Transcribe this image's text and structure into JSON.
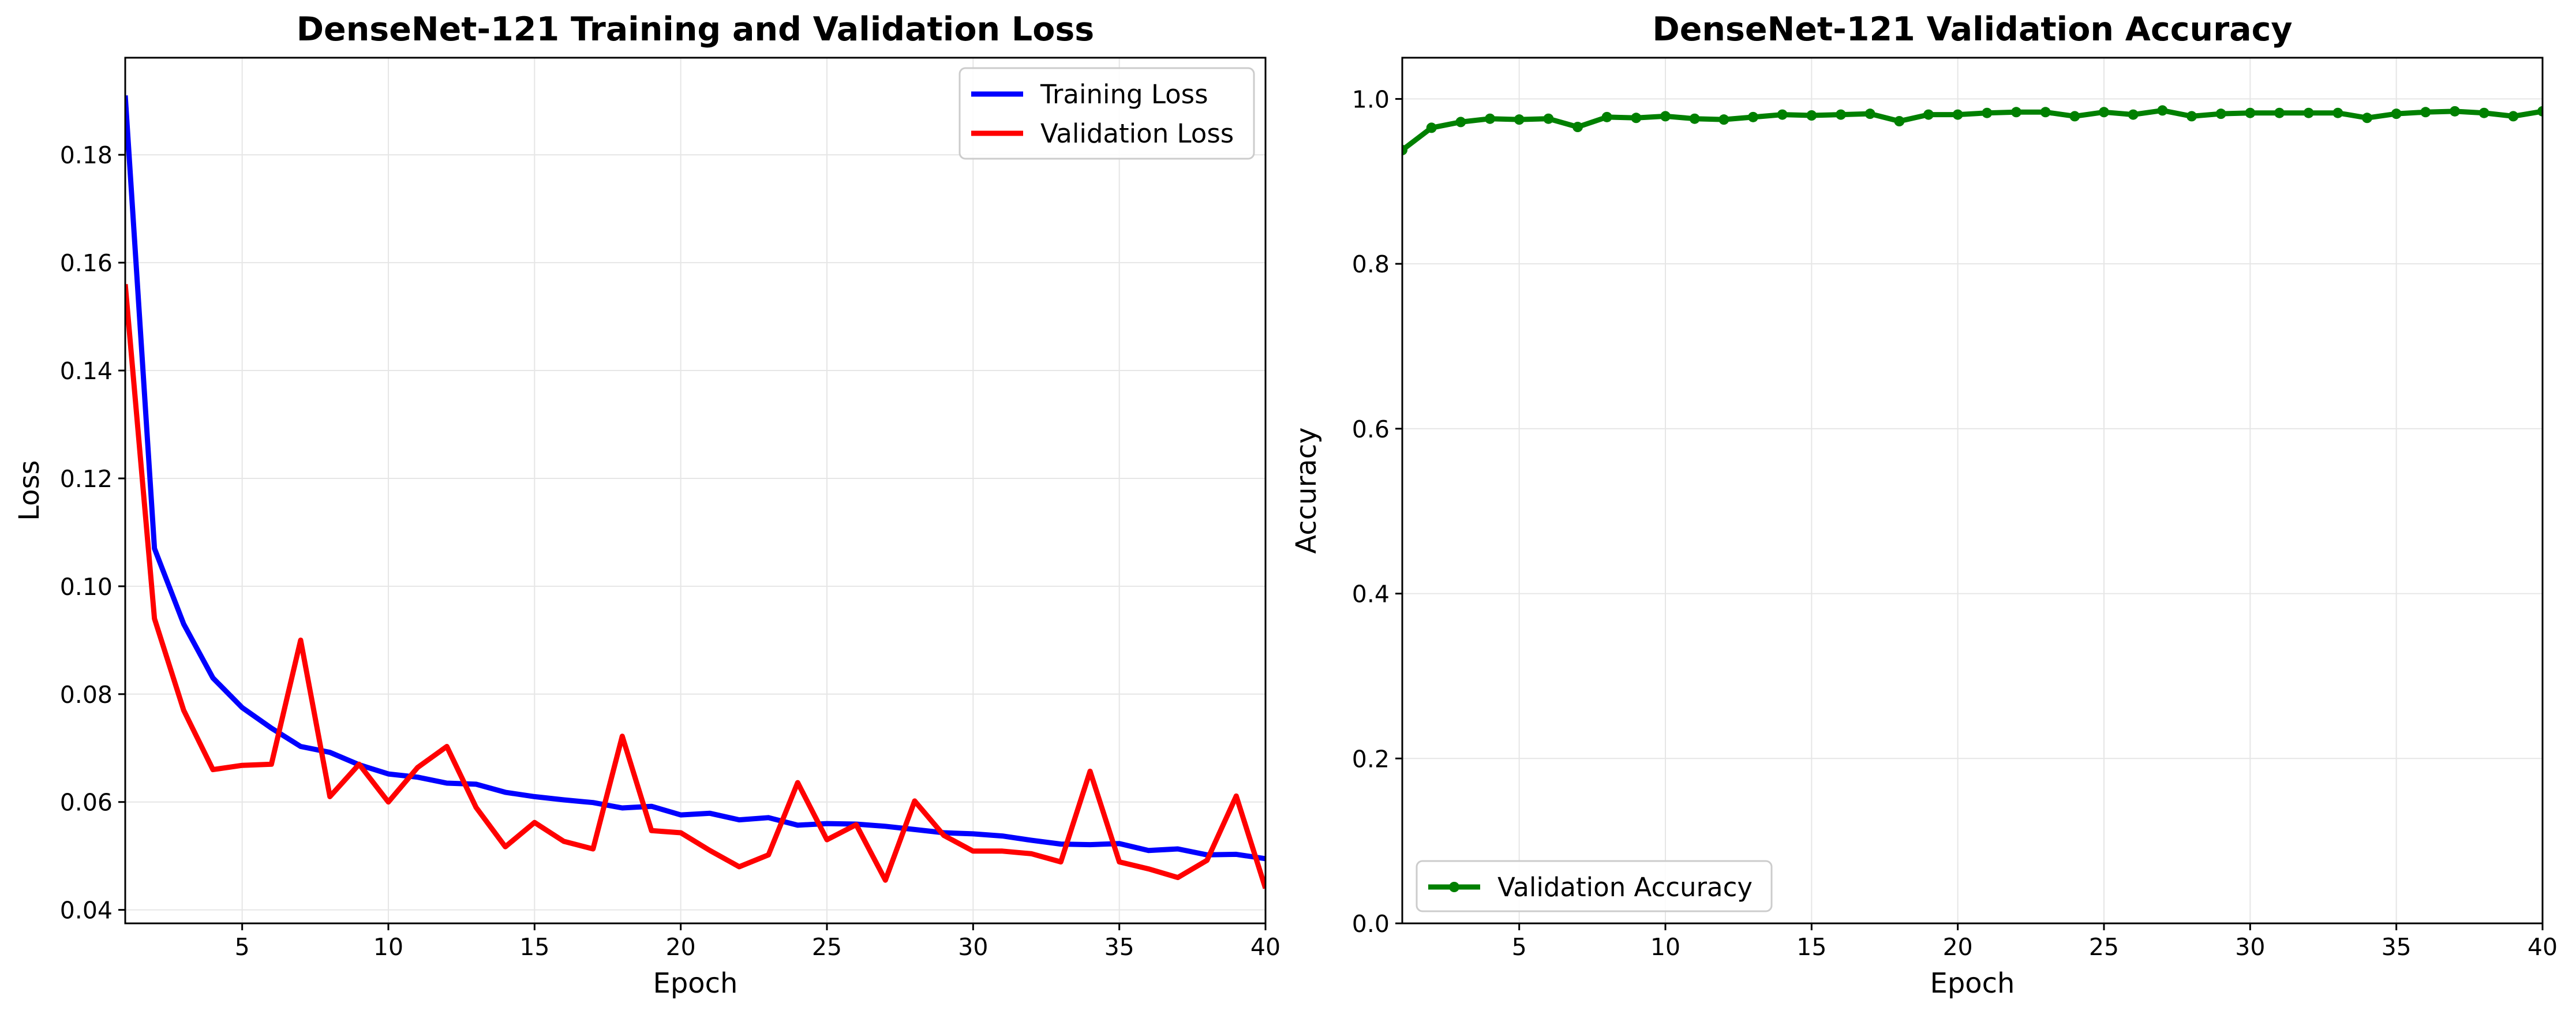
{
  "chart_data": [
    {
      "type": "line",
      "title": "DenseNet-121 Training and Validation Loss",
      "xlabel": "Epoch",
      "ylabel": "Loss",
      "xlim": [
        1,
        40
      ],
      "ylim": [
        0.0375,
        0.198
      ],
      "xticks": [
        5,
        10,
        15,
        20,
        25,
        30,
        35,
        40
      ],
      "yticks": [
        0.04,
        0.06,
        0.08,
        0.1,
        0.12,
        0.14,
        0.16,
        0.18
      ],
      "ytick_labels": [
        "0.04",
        "0.06",
        "0.08",
        "0.10",
        "0.12",
        "0.14",
        "0.16",
        "0.18"
      ],
      "grid": true,
      "legend_position": "upper right",
      "x": [
        1,
        2,
        3,
        4,
        5,
        6,
        7,
        8,
        9,
        10,
        11,
        12,
        13,
        14,
        15,
        16,
        17,
        18,
        19,
        20,
        21,
        22,
        23,
        24,
        25,
        26,
        27,
        28,
        29,
        30,
        31,
        32,
        33,
        34,
        35,
        36,
        37,
        38,
        39,
        40
      ],
      "series": [
        {
          "name": "Training Loss",
          "color": "#0000ff",
          "values": [
            0.191,
            0.107,
            0.093,
            0.083,
            0.0775,
            0.0737,
            0.0703,
            0.0692,
            0.0669,
            0.0652,
            0.0646,
            0.0635,
            0.0633,
            0.0618,
            0.061,
            0.0604,
            0.0599,
            0.0589,
            0.0592,
            0.0576,
            0.0579,
            0.0567,
            0.0571,
            0.0557,
            0.056,
            0.0559,
            0.0555,
            0.0549,
            0.0543,
            0.0541,
            0.0537,
            0.0529,
            0.0522,
            0.0521,
            0.0523,
            0.051,
            0.0513,
            0.0502,
            0.0503,
            0.0495
          ]
        },
        {
          "name": "Validation Loss",
          "color": "#ff0000",
          "values": [
            0.156,
            0.094,
            0.077,
            0.066,
            0.0668,
            0.067,
            0.09,
            0.061,
            0.067,
            0.06,
            0.0664,
            0.0703,
            0.059,
            0.0517,
            0.0562,
            0.0527,
            0.0513,
            0.0722,
            0.0547,
            0.0543,
            0.051,
            0.048,
            0.0502,
            0.0636,
            0.053,
            0.0558,
            0.0455,
            0.0602,
            0.0538,
            0.0509,
            0.0509,
            0.0504,
            0.0489,
            0.0657,
            0.0489,
            0.0476,
            0.046,
            0.0492,
            0.0611,
            0.044
          ]
        }
      ]
    },
    {
      "type": "line",
      "title": "DenseNet-121 Validation Accuracy",
      "xlabel": "Epoch",
      "ylabel": "Accuracy",
      "xlim": [
        1,
        40
      ],
      "ylim": [
        0.0,
        1.05
      ],
      "xticks": [
        5,
        10,
        15,
        20,
        25,
        30,
        35,
        40
      ],
      "yticks": [
        0.0,
        0.2,
        0.4,
        0.6,
        0.8,
        1.0
      ],
      "ytick_labels": [
        "0.0",
        "0.2",
        "0.4",
        "0.6",
        "0.8",
        "1.0"
      ],
      "grid": true,
      "legend_position": "lower left",
      "markers": true,
      "x": [
        1,
        2,
        3,
        4,
        5,
        6,
        7,
        8,
        9,
        10,
        11,
        12,
        13,
        14,
        15,
        16,
        17,
        18,
        19,
        20,
        21,
        22,
        23,
        24,
        25,
        26,
        27,
        28,
        29,
        30,
        31,
        32,
        33,
        34,
        35,
        36,
        37,
        38,
        39,
        40
      ],
      "series": [
        {
          "name": "Validation Accuracy",
          "color": "#008000",
          "values": [
            0.938,
            0.965,
            0.972,
            0.976,
            0.975,
            0.976,
            0.966,
            0.978,
            0.977,
            0.979,
            0.976,
            0.975,
            0.978,
            0.981,
            0.98,
            0.981,
            0.982,
            0.973,
            0.981,
            0.981,
            0.983,
            0.984,
            0.984,
            0.979,
            0.984,
            0.981,
            0.986,
            0.979,
            0.982,
            0.983,
            0.983,
            0.983,
            0.983,
            0.977,
            0.982,
            0.984,
            0.985,
            0.983,
            0.979,
            0.985
          ]
        }
      ]
    }
  ]
}
